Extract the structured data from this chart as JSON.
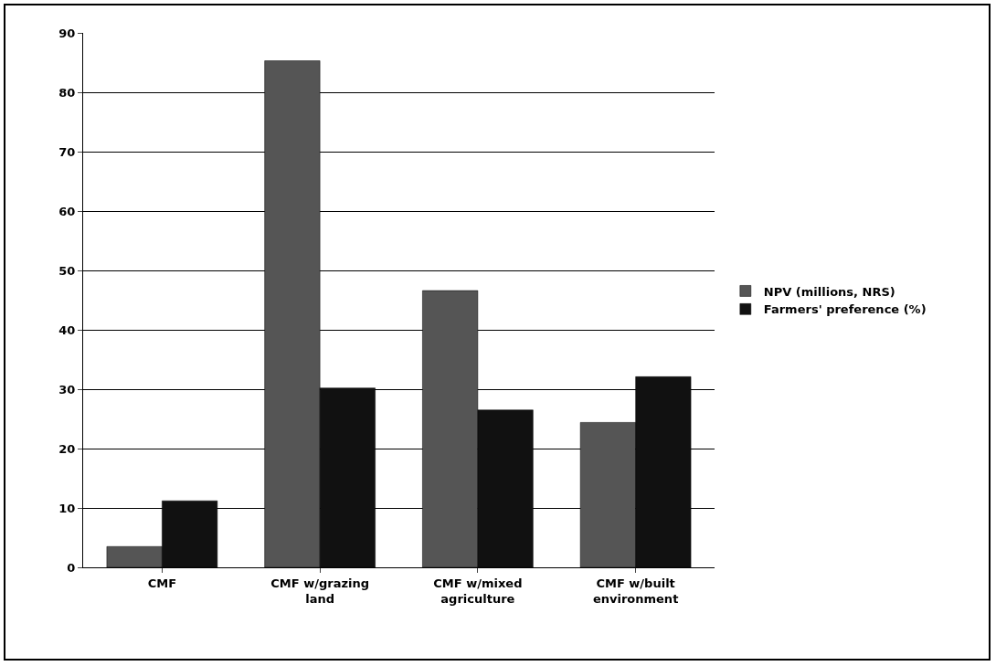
{
  "chart_data": {
    "type": "bar",
    "categories": [
      "CMF",
      "CMF w/grazing land",
      "CMF w/mixed agriculture",
      "CMF w/built environment"
    ],
    "series": [
      {
        "name": "NPV (millions, NRS)",
        "color": "#555555",
        "values": [
          3.5,
          85.3,
          46.6,
          24.4
        ]
      },
      {
        "name": "Farmers' preference (%)",
        "color": "#111111",
        "values": [
          11.2,
          30.2,
          26.5,
          32.1
        ]
      }
    ],
    "ylim": [
      0,
      90
    ],
    "yticks": [
      0,
      10,
      20,
      30,
      40,
      50,
      60,
      70,
      80,
      90
    ],
    "grid": "y",
    "legend": "right"
  }
}
